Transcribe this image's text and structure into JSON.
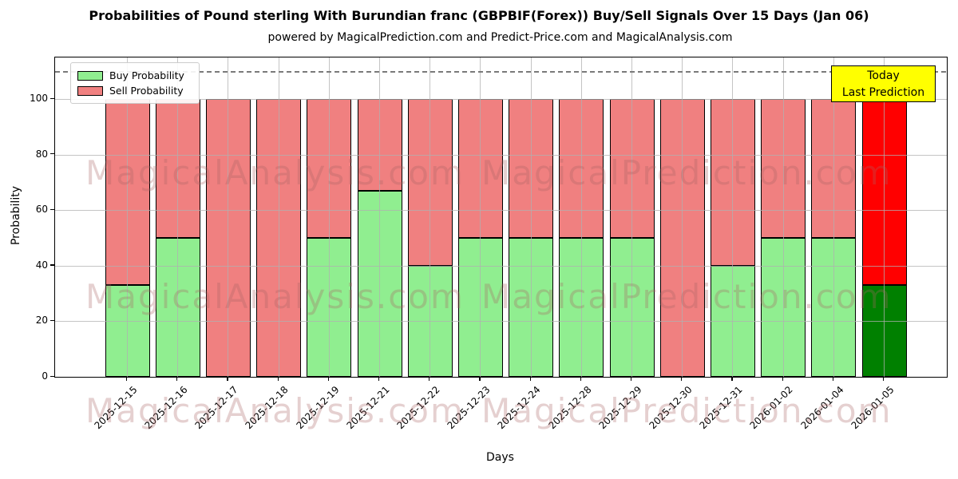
{
  "title": "Probabilities of Pound sterling With Burundian franc (GBPBIF(Forex)) Buy/Sell Signals Over 15 Days (Jan 06)",
  "subtitle": "powered by MagicalPrediction.com and Predict-Price.com and MagicalAnalysis.com",
  "legend": {
    "items": [
      {
        "label": "Buy Probability",
        "color": "#90EE90"
      },
      {
        "label": "Sell Probability",
        "color": "#F08080"
      }
    ]
  },
  "annotation": {
    "line1": "Today",
    "line2": "Last Prediction",
    "bg_color": "#FFFF00",
    "border_color": "#000000"
  },
  "watermarks": {
    "left_text": "MagicalAnalysis.com",
    "right_text": "MagicalPrediction.com"
  },
  "colors": {
    "buy": "#90EE90",
    "sell": "#F08080",
    "today_buy": "#008000",
    "today_sell": "#FF0000",
    "today_top_edge": "#F5A300",
    "grid": "#b0b0b0",
    "dashed_line": "#7a7a7a",
    "bar_edge": "#000000"
  },
  "chart_data": {
    "type": "bar",
    "stacked": true,
    "title": "Probabilities of Pound sterling With Burundian franc (GBPBIF(Forex)) Buy/Sell Signals Over 15 Days (Jan 06)",
    "xlabel": "Days",
    "ylabel": "Probability",
    "ylim": [
      0,
      115
    ],
    "yticks": [
      0,
      20,
      40,
      60,
      80,
      100
    ],
    "grid": true,
    "legend_position": "upper left",
    "dashed_line_y": 110,
    "today_index": 15,
    "categories": [
      "2025-12-15",
      "2025-12-16",
      "2025-12-17",
      "2025-12-18",
      "2025-12-19",
      "2025-12-21",
      "2025-12-22",
      "2025-12-23",
      "2025-12-24",
      "2025-12-28",
      "2025-12-29",
      "2025-12-30",
      "2025-12-31",
      "2026-01-02",
      "2026-01-04",
      "2026-01-05"
    ],
    "series": [
      {
        "name": "Buy Probability",
        "color": "#90EE90",
        "values": [
          33,
          50,
          0,
          0,
          50,
          67,
          40,
          50,
          50,
          50,
          50,
          0,
          40,
          50,
          50,
          33
        ]
      },
      {
        "name": "Sell Probability",
        "color": "#F08080",
        "values": [
          67,
          50,
          100,
          100,
          50,
          33,
          60,
          50,
          50,
          50,
          50,
          100,
          60,
          50,
          50,
          67
        ]
      }
    ]
  }
}
